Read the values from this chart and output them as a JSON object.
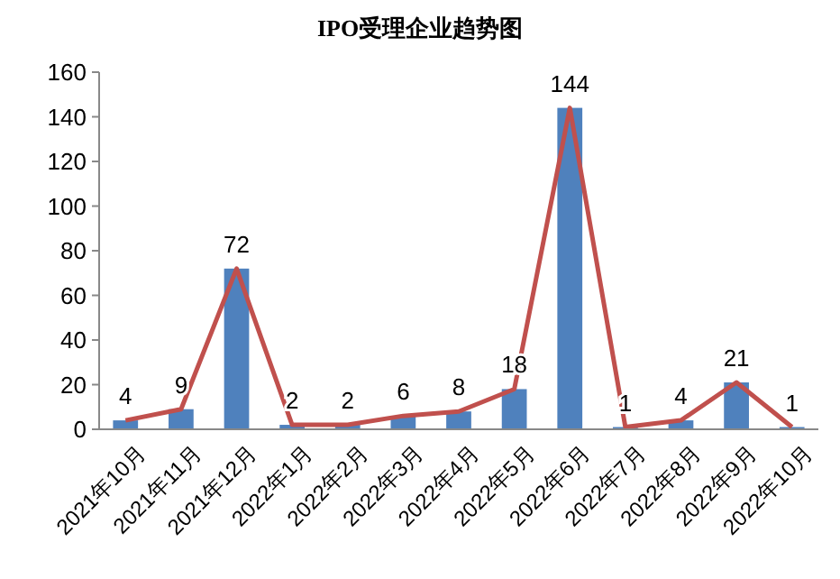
{
  "chart_data": {
    "type": "bar",
    "title": "IPO受理企业趋势图",
    "categories": [
      "2021年10月",
      "2021年11月",
      "2021年12月",
      "2022年1月",
      "2022年2月",
      "2022年3月",
      "2022年4月",
      "2022年5月",
      "2022年6月",
      "2022年7月",
      "2022年8月",
      "2022年9月",
      "2022年10月"
    ],
    "series": [
      {
        "color": "#4f81bd",
        "values": [
          4,
          9,
          72,
          2,
          2,
          6,
          8,
          18,
          144,
          1,
          4,
          21,
          1
        ],
        "value_labels": [
          "4",
          "9",
          "72",
          "2",
          "2",
          "6",
          "8",
          "18",
          "144",
          "1",
          "4",
          "21",
          "1"
        ]
      },
      {
        "type": "line",
        "color": "#c0504d",
        "values": [
          4,
          9,
          72,
          2,
          2,
          6,
          8,
          18,
          144,
          1,
          4,
          21,
          1
        ]
      }
    ],
    "ylim": [
      0,
      160
    ],
    "yticks": [
      0,
      20,
      40,
      60,
      80,
      100,
      120,
      140,
      160
    ],
    "marker": "none",
    "line_style": "solid"
  }
}
